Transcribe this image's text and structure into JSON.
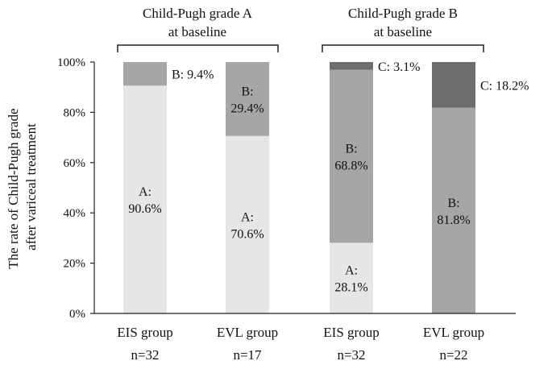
{
  "chart_data": {
    "type": "bar",
    "stacked": true,
    "percent": true,
    "ylabel_lines": [
      "The rate of Child-Pugh grade",
      "after variceal treatment"
    ],
    "ylim": [
      0,
      100
    ],
    "yticks": [
      "0%",
      "20%",
      "40%",
      "60%",
      "80%",
      "100%"
    ],
    "grid": false,
    "groups": [
      {
        "title_lines": [
          "Child-Pugh grade A",
          "at baseline"
        ]
      },
      {
        "title_lines": [
          "Child-Pugh grade B",
          "at baseline"
        ]
      }
    ],
    "categories": [
      {
        "name": "EIS group",
        "n": "n=32"
      },
      {
        "name": "EVL group",
        "n": "n=17"
      },
      {
        "name": "EIS group",
        "n": "n=32"
      },
      {
        "name": "EVL group",
        "n": "n=22"
      }
    ],
    "series": [
      {
        "grade": "A",
        "color": "#e6e6e6",
        "values": [
          90.6,
          70.6,
          28.1,
          0
        ]
      },
      {
        "grade": "B",
        "color": "#a6a6a6",
        "values": [
          9.4,
          29.4,
          68.8,
          81.8
        ]
      },
      {
        "grade": "C",
        "color": "#6e6e6e",
        "values": [
          0,
          0,
          3.1,
          18.2
        ]
      }
    ],
    "segment_labels": [
      {
        "bar": 0,
        "grade": "A",
        "text": [
          "A:",
          "90.6%"
        ],
        "placement": "inside"
      },
      {
        "bar": 0,
        "grade": "B",
        "text": [
          "B: 9.4%"
        ],
        "placement": "outside-right"
      },
      {
        "bar": 1,
        "grade": "A",
        "text": [
          "A:",
          "70.6%"
        ],
        "placement": "inside"
      },
      {
        "bar": 1,
        "grade": "B",
        "text": [
          "B:",
          "29.4%"
        ],
        "placement": "inside"
      },
      {
        "bar": 2,
        "grade": "A",
        "text": [
          "A:",
          "28.1%"
        ],
        "placement": "inside"
      },
      {
        "bar": 2,
        "grade": "B",
        "text": [
          "B:",
          "68.8%"
        ],
        "placement": "inside"
      },
      {
        "bar": 2,
        "grade": "C",
        "text": [
          "C: 3.1%"
        ],
        "placement": "outside-right"
      },
      {
        "bar": 3,
        "grade": "B",
        "text": [
          "B:",
          "81.8%"
        ],
        "placement": "inside"
      },
      {
        "bar": 3,
        "grade": "C",
        "text": [
          "C: 18.2%"
        ],
        "placement": "outside-right"
      }
    ]
  }
}
